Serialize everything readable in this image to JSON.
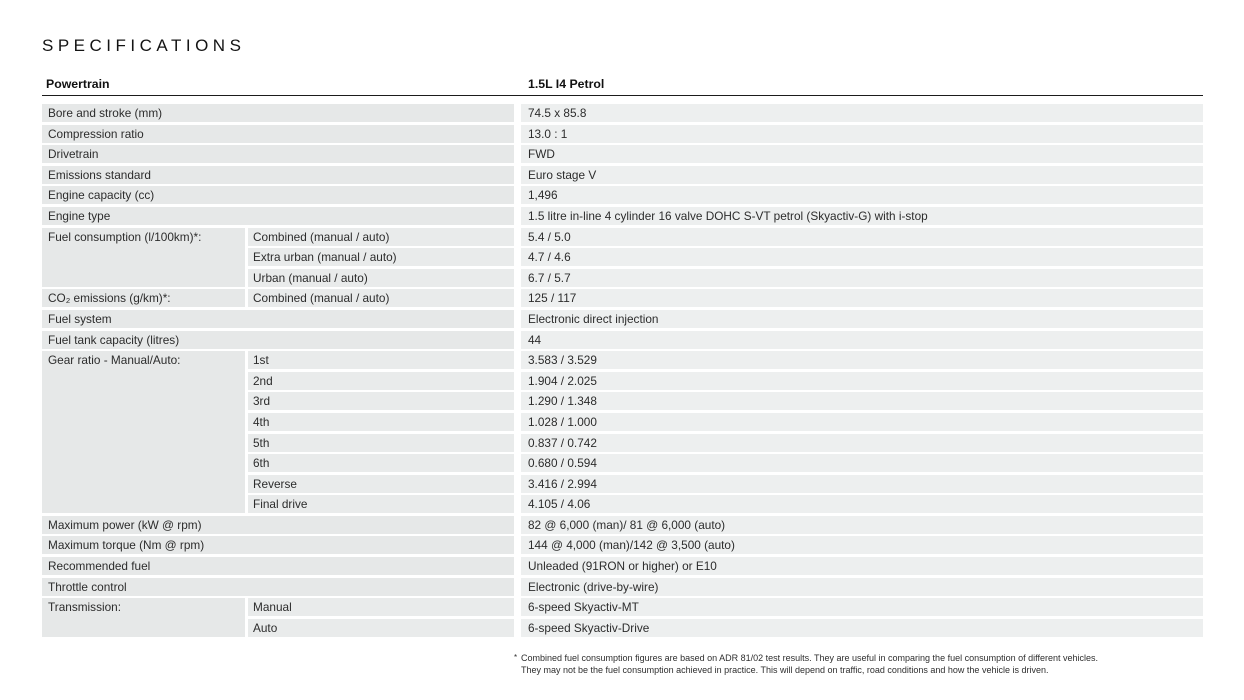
{
  "page": {
    "title": "SPECIFICATIONS"
  },
  "colors": {
    "text": "#2c2c2c",
    "rule": "#1b1b1b",
    "band_left": "#e6e8e8",
    "band_mid": "#e9ebeb",
    "band_right": "#edefef"
  },
  "table": {
    "header": {
      "group": "Powertrain",
      "variant": "1.5L I4 Petrol"
    },
    "rows": [
      {
        "label": "Bore and stroke (mm)",
        "sublabel": "",
        "value": "74.5 x 85.8",
        "merged": true
      },
      {
        "label": "Compression ratio",
        "sublabel": "",
        "value": "13.0 : 1",
        "merged": true
      },
      {
        "label": "Drivetrain",
        "sublabel": "",
        "value": "FWD",
        "merged": true
      },
      {
        "label": "Emissions standard",
        "sublabel": "",
        "value": "Euro stage V",
        "merged": true
      },
      {
        "label": "Engine capacity (cc)",
        "sublabel": "",
        "value": "1,496",
        "merged": true
      },
      {
        "label": "Engine type",
        "sublabel": "",
        "value": "1.5 litre in-line 4 cylinder 16 valve DOHC S-VT petrol (Skyactiv-G) with i-stop",
        "merged": true
      },
      {
        "label": "Fuel consumption (l/100km)*:",
        "sublabel": "Combined (manual / auto)",
        "value": "5.4 / 5.0",
        "cont": true
      },
      {
        "label": "",
        "sublabel": "Extra urban (manual / auto)",
        "value": "4.7 / 4.6",
        "cont": true
      },
      {
        "label": "",
        "sublabel": "Urban (manual / auto)",
        "value": "6.7 / 5.7"
      },
      {
        "label": "CO₂ emissions (g/km)*:",
        "sublabel": "Combined (manual / auto)",
        "value": "125 / 117"
      },
      {
        "label": "Fuel system",
        "sublabel": "",
        "value": "Electronic direct injection",
        "merged": true
      },
      {
        "label": "Fuel tank capacity (litres)",
        "sublabel": "",
        "value": "44",
        "merged": true
      },
      {
        "label": "Gear ratio - Manual/Auto:",
        "sublabel": "1st",
        "value": "3.583 / 3.529",
        "cont": true
      },
      {
        "label": "",
        "sublabel": "2nd",
        "value": "1.904 / 2.025",
        "cont": true
      },
      {
        "label": "",
        "sublabel": "3rd",
        "value": "1.290 / 1.348",
        "cont": true
      },
      {
        "label": "",
        "sublabel": "4th",
        "value": "1.028 / 1.000",
        "cont": true
      },
      {
        "label": "",
        "sublabel": "5th",
        "value": "0.837 / 0.742",
        "cont": true
      },
      {
        "label": "",
        "sublabel": "6th",
        "value": "0.680 / 0.594",
        "cont": true
      },
      {
        "label": "",
        "sublabel": "Reverse",
        "value": "3.416 / 2.994",
        "cont": true
      },
      {
        "label": "",
        "sublabel": "Final drive",
        "value": "4.105 / 4.06"
      },
      {
        "label": "Maximum power (kW @ rpm)",
        "sublabel": "",
        "value": "82 @ 6,000 (man)/ 81 @ 6,000 (auto)",
        "merged": true
      },
      {
        "label": "Maximum torque (Nm @ rpm)",
        "sublabel": "",
        "value": "144 @ 4,000 (man)/142 @ 3,500 (auto)",
        "merged": true
      },
      {
        "label": "Recommended fuel",
        "sublabel": "",
        "value": "Unleaded (91RON or higher) or E10",
        "merged": true
      },
      {
        "label": "Throttle control",
        "sublabel": "",
        "value": "Electronic (drive-by-wire)",
        "merged": true
      },
      {
        "label": "Transmission:",
        "sublabel": "Manual",
        "value": "6-speed Skyactiv-MT",
        "cont": true
      },
      {
        "label": "",
        "sublabel": "Auto",
        "value": "6-speed Skyactiv-Drive"
      }
    ]
  },
  "footnote": {
    "marker": "*",
    "line1": "Combined fuel consumption figures are based on ADR 81/02 test results. They are useful in comparing the fuel consumption of different vehicles.",
    "line2": "They may not be the fuel consumption achieved in practice. This will depend on traffic, road conditions and how the vehicle is driven."
  }
}
